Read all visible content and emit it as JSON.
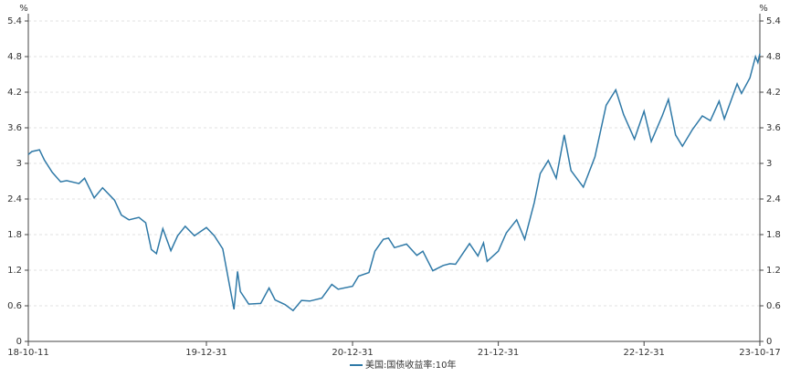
{
  "chart_data": {
    "type": "line",
    "y_unit": "%",
    "y2_unit": "%",
    "x": [
      "18-10-11",
      "18-10-20",
      "18-11-08",
      "18-11-20",
      "18-12-10",
      "18-12-31",
      "19-01-15",
      "19-02-15",
      "19-03-01",
      "19-03-25",
      "19-04-15",
      "19-05-15",
      "19-06-01",
      "19-06-20",
      "19-07-15",
      "19-08-01",
      "19-08-15",
      "19-08-28",
      "19-09-13",
      "19-10-03",
      "19-10-20",
      "19-11-08",
      "19-12-01",
      "19-12-31",
      "20-01-20",
      "20-02-10",
      "20-03-09",
      "20-03-18",
      "20-03-25",
      "20-04-15",
      "20-05-15",
      "20-06-05",
      "20-06-20",
      "20-07-15",
      "20-08-04",
      "20-08-25",
      "20-09-15",
      "20-10-15",
      "20-11-09",
      "20-11-25",
      "20-12-31",
      "21-01-15",
      "21-02-10",
      "21-02-25",
      "21-03-18",
      "21-03-31",
      "21-04-15",
      "21-05-15",
      "21-06-10",
      "21-06-25",
      "21-07-20",
      "21-08-15",
      "21-09-01",
      "21-09-15",
      "21-10-20",
      "21-11-10",
      "21-11-24",
      "21-12-03",
      "21-12-31",
      "22-01-20",
      "22-02-15",
      "22-03-07",
      "22-03-31",
      "22-04-15",
      "22-05-05",
      "22-05-25",
      "22-06-14",
      "22-07-01",
      "22-08-01",
      "22-08-30",
      "22-09-27",
      "22-10-21",
      "22-11-10",
      "22-12-07",
      "22-12-31",
      "23-01-18",
      "23-02-15",
      "23-03-02",
      "23-03-20",
      "23-04-06",
      "23-05-01",
      "23-05-26",
      "23-06-15",
      "23-07-07",
      "23-07-20",
      "23-08-21",
      "23-09-01",
      "23-09-22",
      "23-10-06",
      "23-10-12",
      "23-10-17"
    ],
    "series": [
      {
        "name": "美国:国债收益率:10年",
        "color": "#2f79a7",
        "values": [
          3.15,
          3.2,
          3.23,
          3.06,
          2.85,
          2.69,
          2.71,
          2.66,
          2.75,
          2.42,
          2.59,
          2.38,
          2.13,
          2.05,
          2.09,
          2.0,
          1.55,
          1.48,
          1.9,
          1.53,
          1.78,
          1.94,
          1.78,
          1.92,
          1.78,
          1.56,
          0.54,
          1.18,
          0.84,
          0.63,
          0.64,
          0.9,
          0.7,
          0.62,
          0.52,
          0.69,
          0.68,
          0.73,
          0.96,
          0.88,
          0.93,
          1.1,
          1.16,
          1.52,
          1.72,
          1.74,
          1.58,
          1.64,
          1.45,
          1.52,
          1.19,
          1.28,
          1.31,
          1.3,
          1.65,
          1.44,
          1.66,
          1.35,
          1.52,
          1.83,
          2.05,
          1.72,
          2.34,
          2.83,
          3.05,
          2.75,
          3.48,
          2.88,
          2.6,
          3.11,
          3.98,
          4.24,
          3.82,
          3.41,
          3.88,
          3.37,
          3.81,
          4.08,
          3.48,
          3.29,
          3.57,
          3.8,
          3.72,
          4.05,
          3.75,
          4.34,
          4.18,
          4.44,
          4.8,
          4.7,
          4.85
        ]
      }
    ],
    "xlim": [
      "18-10-11",
      "23-10-17"
    ],
    "xticks": [
      "18-10-11",
      "19-12-31",
      "20-12-31",
      "21-12-31",
      "22-12-31",
      "23-10-17"
    ],
    "ylim": [
      0,
      5.4
    ],
    "yticks": [
      0,
      0.6,
      1.2,
      1.8,
      2.4,
      3,
      3.6,
      4.2,
      4.8,
      5.4
    ],
    "y2lim": [
      0,
      5.4
    ],
    "y2ticks": [
      0,
      0.6,
      1.2,
      1.8,
      2.4,
      3,
      3.6,
      4.2,
      4.8,
      5.4
    ],
    "grid": true,
    "legend": "bottom"
  }
}
